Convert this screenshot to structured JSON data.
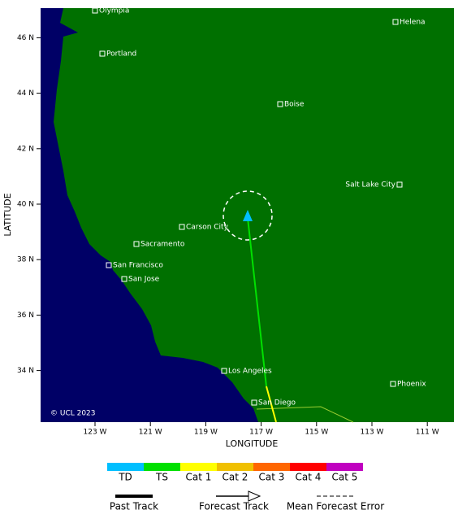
{
  "map": {
    "cities": [
      "Olympia",
      "Helena",
      "Portland",
      "Boise",
      "Salt Lake City",
      "Carson City",
      "Sacramento",
      "San Francisco",
      "San Jose",
      "Los Angeles",
      "Phoenix",
      "San Diego"
    ],
    "lon_ticks": [
      {
        "value": -123,
        "label": "123 W"
      },
      {
        "value": -121,
        "label": "121 W"
      },
      {
        "value": -119,
        "label": "119 W"
      },
      {
        "value": -117,
        "label": "117 W"
      },
      {
        "value": -115,
        "label": "115 W"
      },
      {
        "value": -113,
        "label": "113 W"
      },
      {
        "value": -111,
        "label": "111 W"
      }
    ],
    "lat_ticks": [
      {
        "value": 46,
        "label": "46 N"
      },
      {
        "value": 44,
        "label": "44 N"
      },
      {
        "value": 42,
        "label": "42 N"
      },
      {
        "value": 40,
        "label": "40 N"
      },
      {
        "value": 38,
        "label": "38 N"
      },
      {
        "value": 36,
        "label": "36 N"
      },
      {
        "value": 34,
        "label": "34 N"
      }
    ],
    "x_axis_label": "LONGITUDE",
    "y_axis_label": "LATITUDE",
    "copyright": "© UCL 2023"
  },
  "legend": {
    "intensity": [
      {
        "label": "TD",
        "color": "#00bfff"
      },
      {
        "label": "TS",
        "color": "#00e000"
      },
      {
        "label": "Cat 1",
        "color": "#ffff00"
      },
      {
        "label": "Cat 2",
        "color": "#f0c000"
      },
      {
        "label": "Cat 3",
        "color": "#ff6600"
      },
      {
        "label": "Cat 4",
        "color": "#ff0000"
      },
      {
        "label": "Cat 5",
        "color": "#c000c0"
      }
    ],
    "lines": [
      "Past Track",
      "Forecast Track",
      "Mean Forecast Error"
    ]
  }
}
